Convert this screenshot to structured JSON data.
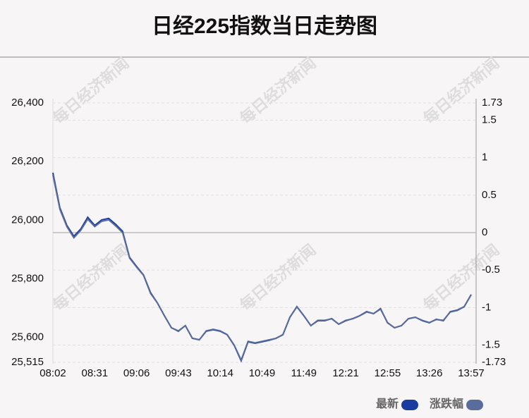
{
  "chart_data": {
    "type": "line",
    "title": "日经225指数当日走势图",
    "watermark": "每日经济新闻",
    "categories": [
      "08:02",
      null,
      null,
      null,
      null,
      null,
      "08:31",
      null,
      null,
      null,
      null,
      null,
      "09:06",
      null,
      null,
      null,
      null,
      null,
      "09:43",
      null,
      null,
      null,
      null,
      null,
      "10:14",
      null,
      null,
      null,
      null,
      null,
      "10:49",
      null,
      null,
      null,
      null,
      null,
      "11:49",
      null,
      null,
      null,
      null,
      null,
      "12:21",
      null,
      null,
      null,
      null,
      null,
      "12:55",
      null,
      null,
      null,
      null,
      null,
      "13:26",
      null,
      null,
      null,
      null,
      null,
      "13:57"
    ],
    "series": [
      {
        "name": "最新",
        "color": "#1a3c9e",
        "values": [
          26162,
          26042,
          25982,
          25945,
          25970,
          26010,
          25982,
          26001,
          26006,
          25986,
          25962,
          25873,
          25842,
          25813,
          25753,
          25717,
          25674,
          25633,
          25621,
          25640,
          25597,
          25592,
          25621,
          25626,
          25621,
          25609,
          25573,
          25520,
          25585,
          25580,
          25585,
          25590,
          25597,
          25609,
          25669,
          25705,
          25674,
          25640,
          25657,
          25657,
          25664,
          25645,
          25657,
          25664,
          25674,
          25688,
          25681,
          25698,
          25650,
          25633,
          25640,
          25664,
          25669,
          25657,
          25650,
          25662,
          25657,
          25688,
          25693,
          25705,
          25746
        ]
      },
      {
        "name": "涨跌幅",
        "color": "#5a6c9c",
        "axis": "y2",
        "values": [
          0.77,
          0.31,
          0.08,
          -0.07,
          0.03,
          0.18,
          0.08,
          0.15,
          0.17,
          0.09,
          0.0,
          -0.34,
          -0.46,
          -0.57,
          -0.81,
          -0.94,
          -1.11,
          -1.27,
          -1.31,
          -1.24,
          -1.41,
          -1.43,
          -1.31,
          -1.29,
          -1.31,
          -1.36,
          -1.5,
          -1.7,
          -1.45,
          -1.47,
          -1.45,
          -1.43,
          -1.41,
          -1.36,
          -1.13,
          -0.99,
          -1.11,
          -1.24,
          -1.17,
          -1.17,
          -1.15,
          -1.22,
          -1.17,
          -1.15,
          -1.11,
          -1.06,
          -1.08,
          -1.02,
          -1.2,
          -1.27,
          -1.24,
          -1.15,
          -1.13,
          -1.17,
          -1.2,
          -1.16,
          -1.17,
          -1.06,
          -1.04,
          -0.99,
          -0.83
        ]
      }
    ],
    "ylim": [
      25515,
      26400
    ],
    "yticks": [
      {
        "value": 25515,
        "label": "25,515"
      },
      {
        "value": 25600,
        "label": "25,600"
      },
      {
        "value": 25800,
        "label": "25,800"
      },
      {
        "value": 26000,
        "label": "26,000"
      },
      {
        "value": 26200,
        "label": "26,200"
      },
      {
        "value": 26400,
        "label": "26,400"
      }
    ],
    "y2lim": [
      -1.73,
      1.73
    ],
    "y2ticks": [
      -1.73,
      -1.5,
      -1,
      -0.5,
      0,
      0.5,
      1,
      1.5,
      1.73
    ],
    "grid": true
  }
}
